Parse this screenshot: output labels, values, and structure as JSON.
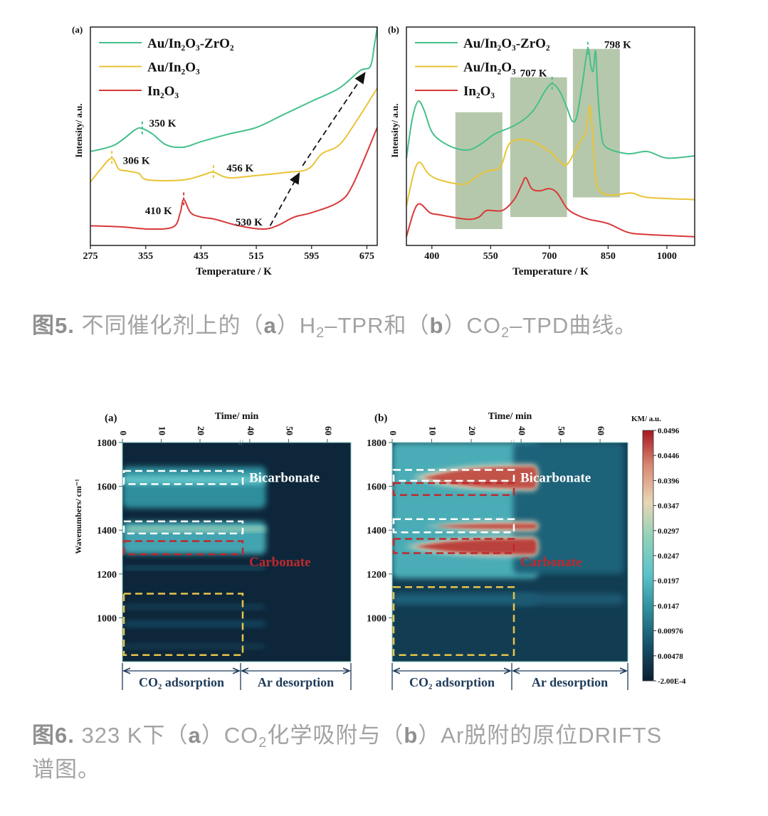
{
  "figure5": {
    "caption": {
      "label": "图5.",
      "p1": " 不同催化剂上的（",
      "a": "a",
      "p2": "）H",
      "s1": "2",
      "p3": "–TPR和（",
      "b": "b",
      "p4": "）CO",
      "s2": "2",
      "p5": "–TPD曲线。"
    }
  },
  "figure6": {
    "caption": {
      "label": "图6.",
      "p1": " 323 K下（",
      "a": "a",
      "p2": "）CO",
      "s1": "2",
      "p3": "化学吸附与（",
      "b": "b",
      "p4": "）Ar脱附的原位DRIFTS",
      "line2": "谱图。"
    }
  },
  "chart_data": [
    {
      "type": "line",
      "panel": "(a)",
      "xlabel": "Temperature / K",
      "ylabel": "Intensity/ a.u.",
      "xlim": [
        275,
        690
      ],
      "ylim": [
        0,
        100
      ],
      "xticks": [
        275,
        355,
        435,
        515,
        595,
        675
      ],
      "legend": "top-left",
      "grid": false,
      "series": [
        {
          "name": "Au/In₂O₃-ZrO₂",
          "color": "#45c08a",
          "points": [
            [
              275,
              43
            ],
            [
              310,
              46
            ],
            [
              340,
              53
            ],
            [
              350,
              53.5
            ],
            [
              365,
              51
            ],
            [
              385,
              46
            ],
            [
              410,
              45
            ],
            [
              435,
              47.5
            ],
            [
              475,
              51
            ],
            [
              515,
              54
            ],
            [
              555,
              60
            ],
            [
              595,
              66
            ],
            [
              635,
              72
            ],
            [
              665,
              80
            ],
            [
              680,
              82
            ],
            [
              686,
              92
            ],
            [
              690,
              100
            ]
          ]
        },
        {
          "name": "Au/In₂O₃",
          "color": "#e9c437",
          "points": [
            [
              275,
              29
            ],
            [
              290,
              35
            ],
            [
              306,
              40
            ],
            [
              316,
              35
            ],
            [
              330,
              34
            ],
            [
              345,
              33
            ],
            [
              358,
              30
            ],
            [
              410,
              30
            ],
            [
              440,
              32.5
            ],
            [
              453,
              33.5
            ],
            [
              475,
              31
            ],
            [
              515,
              32
            ],
            [
              560,
              33.5
            ],
            [
              590,
              35
            ],
            [
              610,
              42
            ],
            [
              635,
              46
            ],
            [
              660,
              57
            ],
            [
              690,
              72
            ]
          ]
        },
        {
          "name": "In₂O₃",
          "color": "#d8393a",
          "points": [
            [
              275,
              9
            ],
            [
              320,
              8.5
            ],
            [
              360,
              7.5
            ],
            [
              395,
              8.5
            ],
            [
              405,
              15
            ],
            [
              410,
              21
            ],
            [
              420,
              15
            ],
            [
              435,
              13
            ],
            [
              455,
              12
            ],
            [
              490,
              9
            ],
            [
              525,
              7.5
            ],
            [
              545,
              9
            ],
            [
              570,
              13
            ],
            [
              595,
              15
            ],
            [
              635,
              20
            ],
            [
              655,
              28
            ],
            [
              690,
              54
            ]
          ]
        }
      ],
      "annotations": [
        {
          "text": "350 K",
          "x": 360,
          "y": 56,
          "marker_x": 350,
          "marker_y": 53.5,
          "color": "#45c08a"
        },
        {
          "text": "306 K",
          "x": 322,
          "y": 39,
          "marker_x": 306,
          "marker_y": 40,
          "color": "#e9c437"
        },
        {
          "text": "456 K",
          "x": 472,
          "y": 35.5,
          "marker_x": 453,
          "marker_y": 33.5,
          "color": "#e9c437"
        },
        {
          "text": "410 K",
          "x": 354,
          "y": 16,
          "marker_x": 410,
          "marker_y": 21,
          "color": "#d8393a"
        },
        {
          "text": "530 K",
          "x": 485,
          "y": 10.7
        }
      ],
      "arrows": [
        {
          "from": [
            535,
            9
          ],
          "to": [
            577,
            33
          ]
        },
        {
          "from": [
            582,
            36.5
          ],
          "to": [
            672,
            79
          ]
        }
      ]
    },
    {
      "type": "line",
      "panel": "(b)",
      "xlabel": "Temperature / K",
      "ylabel": "Intensity/ a.u.",
      "xlim": [
        335,
        1071
      ],
      "ylim": [
        0,
        100
      ],
      "xticks": [
        400,
        550,
        700,
        850,
        1000
      ],
      "legend": "top-left",
      "grid": false,
      "shaded_regions": [
        {
          "x": [
            460,
            580
          ],
          "y": [
            7.5,
            61
          ]
        },
        {
          "x": [
            600,
            745
          ],
          "y": [
            13,
            77
          ]
        },
        {
          "x": [
            760,
            880
          ],
          "y": [
            22,
            90
          ]
        }
      ],
      "series": [
        {
          "name": "Au/In₂O₃-ZrO₂",
          "color": "#45c08a",
          "points": [
            [
              335,
              40
            ],
            [
              350,
              58
            ],
            [
              365,
              66
            ],
            [
              380,
              62
            ],
            [
              400,
              52
            ],
            [
              430,
              47
            ],
            [
              470,
              44
            ],
            [
              500,
              44
            ],
            [
              530,
              47
            ],
            [
              560,
              51
            ],
            [
              600,
              54
            ],
            [
              630,
              57
            ],
            [
              660,
              62
            ],
            [
              690,
              71
            ],
            [
              707,
              74
            ],
            [
              725,
              71
            ],
            [
              745,
              63
            ],
            [
              758,
              57
            ],
            [
              770,
              59
            ],
            [
              785,
              75
            ],
            [
              798,
              90
            ],
            [
              806,
              82
            ],
            [
              812,
              80
            ],
            [
              818,
              89
            ],
            [
              823,
              72
            ],
            [
              832,
              52
            ],
            [
              845,
              45
            ],
            [
              900,
              42
            ],
            [
              950,
              43
            ],
            [
              1000,
              40
            ],
            [
              1071,
              41
            ]
          ]
        },
        {
          "name": "Au/In₂O₃",
          "color": "#e9c437",
          "points": [
            [
              335,
              18
            ],
            [
              355,
              34
            ],
            [
              370,
              38
            ],
            [
              390,
              33
            ],
            [
              420,
              30
            ],
            [
              480,
              28
            ],
            [
              510,
              31
            ],
            [
              540,
              34
            ],
            [
              575,
              36
            ],
            [
              600,
              47
            ],
            [
              650,
              48
            ],
            [
              700,
              43
            ],
            [
              730,
              38
            ],
            [
              745,
              37
            ],
            [
              765,
              43
            ],
            [
              780,
              48
            ],
            [
              793,
              52
            ],
            [
              803,
              64
            ],
            [
              810,
              52
            ],
            [
              818,
              32
            ],
            [
              828,
              25
            ],
            [
              860,
              23
            ],
            [
              910,
              24
            ],
            [
              950,
              22
            ],
            [
              1071,
              21
            ]
          ]
        },
        {
          "name": "In₂O₃",
          "color": "#d8393a",
          "points": [
            [
              335,
              4
            ],
            [
              355,
              16
            ],
            [
              370,
              19
            ],
            [
              395,
              15
            ],
            [
              420,
              14
            ],
            [
              490,
              12
            ],
            [
              520,
              13
            ],
            [
              540,
              16
            ],
            [
              580,
              16
            ],
            [
              610,
              21
            ],
            [
              630,
              28
            ],
            [
              640,
              31
            ],
            [
              655,
              26
            ],
            [
              675,
              25
            ],
            [
              700,
              26
            ],
            [
              720,
              24
            ],
            [
              745,
              17
            ],
            [
              770,
              14
            ],
            [
              800,
              12
            ],
            [
              850,
              10
            ],
            [
              900,
              6
            ],
            [
              950,
              5
            ],
            [
              1071,
              4
            ]
          ]
        }
      ],
      "annotations": [
        {
          "text": "707 K",
          "x": 625,
          "y": 79,
          "marker_x": 707,
          "marker_y": 74,
          "color": "#45c08a"
        },
        {
          "text": "798 K",
          "x": 840,
          "y": 92,
          "marker_x": 798,
          "marker_y": 90,
          "color": "#45c08a"
        }
      ]
    },
    {
      "type": "heatmap",
      "panel": "(a)",
      "xlabel": "Time/ min",
      "ylabel": "Wavenumbers/ cm⁻¹",
      "xticks": [
        "0",
        "10",
        "20",
        "40",
        "50",
        "60"
      ],
      "yticks": [
        1800,
        1600,
        1400,
        1200,
        1000
      ],
      "ylim": [
        800,
        1800
      ],
      "phases": [
        "CO₂ adsorption",
        "Ar desorption"
      ],
      "background_level": 0.001,
      "bands": [
        {
          "wn": [
            1500,
            1690
          ],
          "t": [
            0,
            37
          ],
          "level": 0.014
        },
        {
          "wn": [
            1610,
            1650
          ],
          "t": [
            0,
            37
          ],
          "level": 0.022
        },
        {
          "wn": [
            1290,
            1440
          ],
          "t": [
            0,
            37
          ],
          "level": 0.017
        },
        {
          "wn": [
            1395,
            1415
          ],
          "t": [
            1,
            37
          ],
          "level": 0.03
        },
        {
          "wn": [
            1220,
            1235
          ],
          "t": [
            0,
            37
          ],
          "level": 0.008
        },
        {
          "wn": [
            1040,
            1060
          ],
          "t": [
            0,
            37
          ],
          "level": 0.005
        },
        {
          "wn": [
            960,
            985
          ],
          "t": [
            0,
            37
          ],
          "level": 0.006
        },
        {
          "wn": [
            860,
            880
          ],
          "t": [
            0,
            37
          ],
          "level": 0.004
        }
      ],
      "boxes": [
        {
          "color": "#ffffff",
          "wn": [
            1610,
            1670
          ]
        },
        {
          "color": "#ffffff",
          "wn": [
            1385,
            1440
          ]
        },
        {
          "color": "#c0282d",
          "wn": [
            1290,
            1350
          ]
        },
        {
          "color": "#e6c34a",
          "wn": [
            830,
            1110
          ]
        }
      ],
      "labels": [
        {
          "text": "Bicarbonate",
          "color": "#ffffff",
          "wn": 1640
        },
        {
          "text": "Carbonate",
          "color": "#c0282d",
          "wn": 1255
        }
      ]
    },
    {
      "type": "heatmap",
      "panel": "(b)",
      "xlabel": "Time/ min",
      "ylabel": "",
      "xticks": [
        "0",
        "10",
        "20",
        "40",
        "50",
        "60"
      ],
      "yticks": [
        1800,
        1600,
        1400,
        1200,
        1000
      ],
      "ylim": [
        800,
        1800
      ],
      "phases": [
        "CO₂ adsorption",
        "Ar desorption"
      ],
      "background_level": 0.004,
      "bands": [
        {
          "wn": [
            1180,
            1800
          ],
          "t": [
            0,
            37
          ],
          "level": 0.018
        },
        {
          "wn": [
            1200,
            1800
          ],
          "t": [
            38,
            66
          ],
          "level": 0.009
        },
        {
          "wn": [
            1580,
            1700
          ],
          "t": [
            5,
            37
          ],
          "level": 0.046,
          "taper": true
        },
        {
          "wn": [
            1395,
            1440
          ],
          "t": [
            8,
            37
          ],
          "level": 0.046,
          "taper": true
        },
        {
          "wn": [
            1280,
            1370
          ],
          "t": [
            3,
            37
          ],
          "level": 0.047,
          "taper": true
        },
        {
          "wn": [
            1060,
            1110
          ],
          "t": [
            0,
            37
          ],
          "level": 0.009
        },
        {
          "wn": [
            1060,
            1110
          ],
          "t": [
            38,
            66
          ],
          "level": 0.008
        }
      ],
      "boxes": [
        {
          "color": "#ffffff",
          "wn": [
            1625,
            1675
          ]
        },
        {
          "color": "#c0282d",
          "wn": [
            1560,
            1615
          ]
        },
        {
          "color": "#ffffff",
          "wn": [
            1390,
            1450
          ]
        },
        {
          "color": "#c0282d",
          "wn": [
            1295,
            1360
          ]
        },
        {
          "color": "#e6c34a",
          "wn": [
            830,
            1140
          ]
        }
      ],
      "labels": [
        {
          "text": "Bicarbonate",
          "color": "#ffffff",
          "wn": 1640
        },
        {
          "text": "Carbonate",
          "color": "#c0282d",
          "wn": 1255
        }
      ]
    },
    {
      "type": "colorbar",
      "title": "KM/ a.u.",
      "ticks": [
        "0.0496",
        "0.0446",
        "0.0396",
        "0.0347",
        "0.0297",
        "0.0247",
        "0.0197",
        "0.0147",
        "0.00976",
        "0.00478",
        "-2.00E-4"
      ],
      "range": [
        -0.0002,
        0.0496
      ],
      "colors": [
        "#0b1e30",
        "#17506a",
        "#2f8e9c",
        "#5cc3cb",
        "#8fd2b8",
        "#e8d6b6",
        "#d98a74",
        "#a8181f"
      ]
    }
  ]
}
